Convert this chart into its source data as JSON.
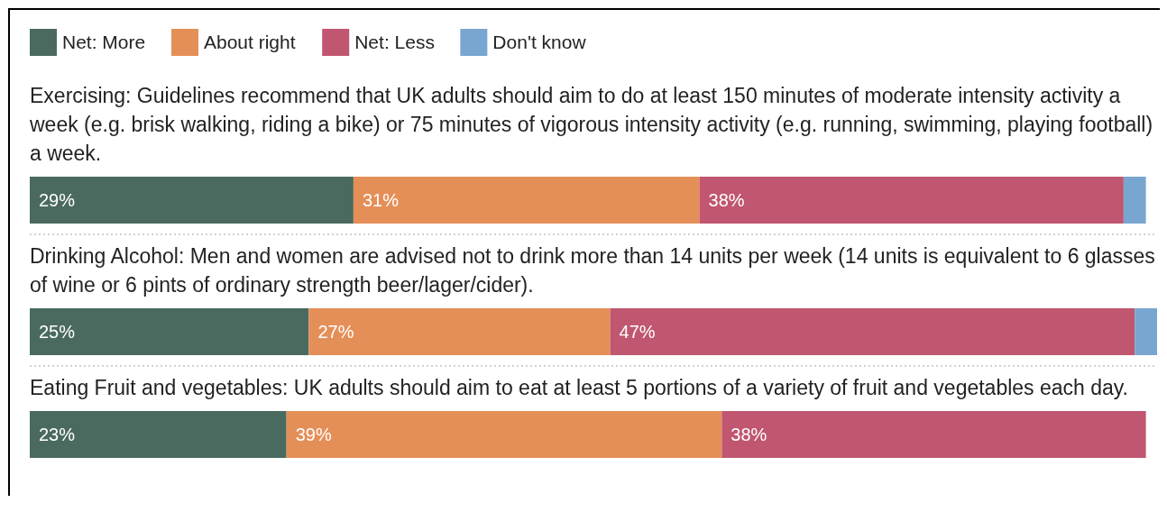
{
  "chart_data": {
    "type": "bar",
    "orientation": "horizontal",
    "stacked": true,
    "legend": "top left",
    "categories": [
      "Exercising: Guidelines recommend that UK adults should aim to do at least 150 minutes of moderate intensity activity a week (e.g. brisk walking, riding a bike) or 75 minutes of vigorous intensity activity (e.g. running, swimming, playing football) a week.",
      "Drinking Alcohol: Men and women are advised not to drink more than 14 units per week (14 units is equivalent to 6 glasses of wine or 6 pints of ordinary strength beer/lager/cider).",
      "Eating Fruit and vegetables: UK adults should aim to eat at least 5 portions of a variety of fruit and vegetables each day."
    ],
    "series": [
      {
        "name": "Net: More",
        "color": "#4a6a60",
        "values": [
          29,
          25,
          23
        ],
        "value_labels": [
          "29%",
          "25%",
          "23%"
        ]
      },
      {
        "name": "About right",
        "color": "#e58f58",
        "values": [
          31,
          27,
          39
        ],
        "value_labels": [
          "31%",
          "27%",
          "39%"
        ]
      },
      {
        "name": "Net: Less",
        "color": "#c0566f",
        "values": [
          38,
          47,
          38
        ],
        "value_labels": [
          "38%",
          "47%",
          "38%"
        ]
      },
      {
        "name": "Don't know",
        "color": "#78a6d0",
        "values": [
          2,
          2,
          null
        ],
        "value_labels": [
          null,
          null,
          null
        ]
      }
    ]
  }
}
